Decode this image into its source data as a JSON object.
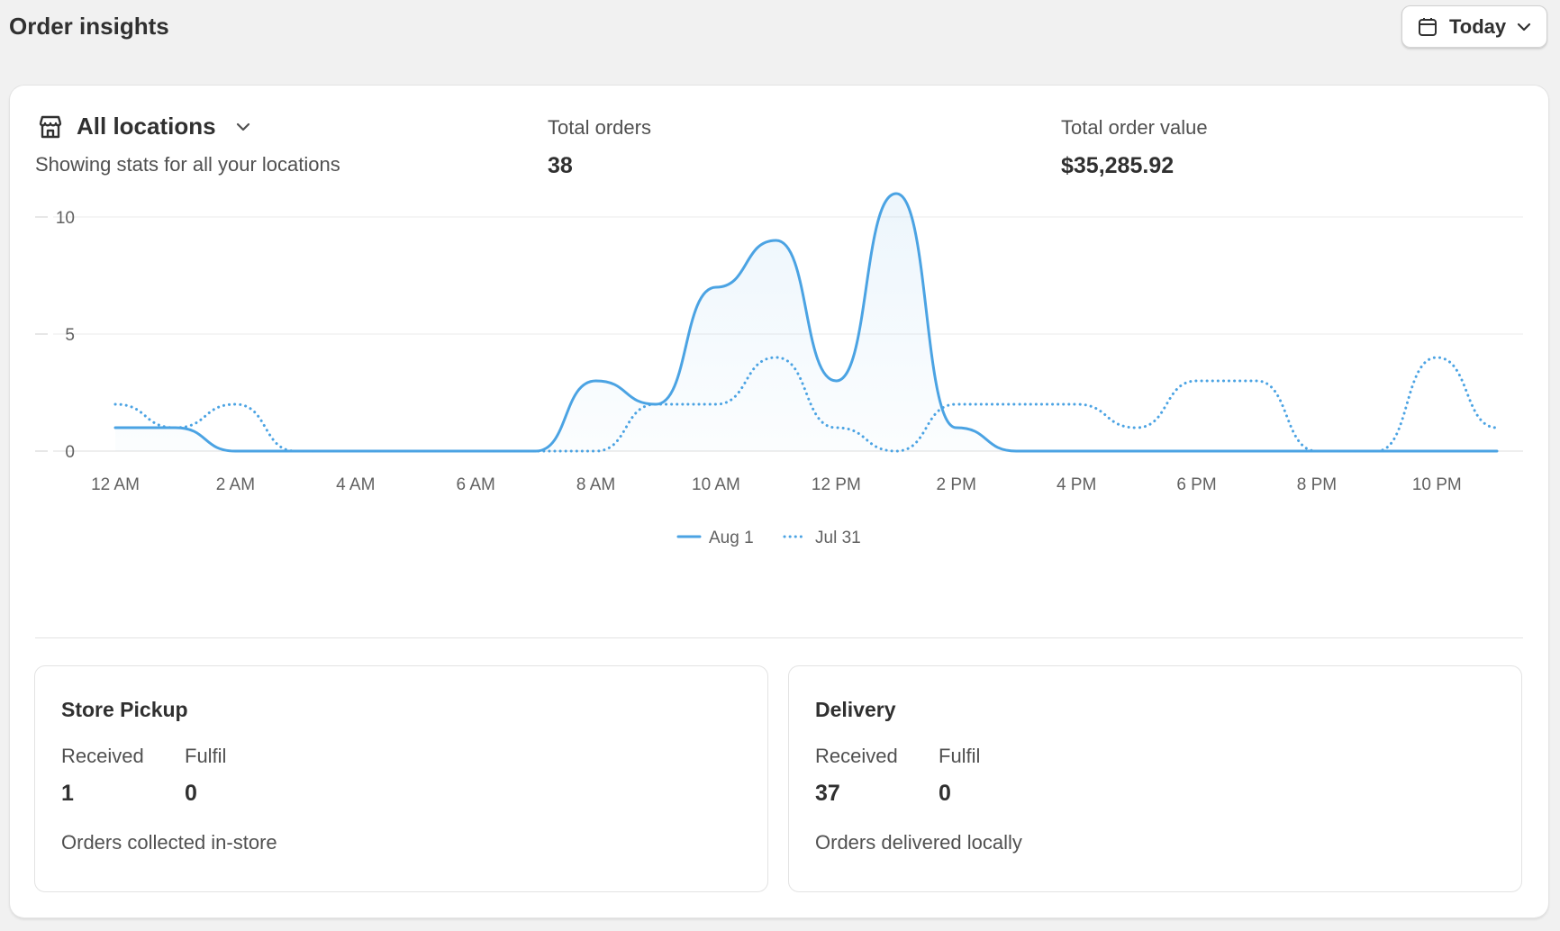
{
  "header": {
    "title": "Order insights",
    "date_range": "Today"
  },
  "summary": {
    "location_label": "All locations",
    "location_subtitle": "Showing stats for all your locations",
    "total_orders_label": "Total orders",
    "total_orders_value": "38",
    "total_value_label": "Total order value",
    "total_value_value": "$35,285.92"
  },
  "chart_data": {
    "type": "line",
    "x_labels": [
      "12 AM",
      "2 AM",
      "4 AM",
      "6 AM",
      "8 AM",
      "10 AM",
      "12 PM",
      "2 PM",
      "4 PM",
      "6 PM",
      "8 PM",
      "10 PM"
    ],
    "x_hours": [
      0,
      1,
      2,
      3,
      4,
      5,
      6,
      7,
      8,
      9,
      10,
      11,
      12,
      13,
      14,
      15,
      16,
      17,
      18,
      19,
      20,
      21,
      22,
      23
    ],
    "y_ticks": [
      0,
      5,
      10
    ],
    "ylim": [
      0,
      11
    ],
    "grid": true,
    "legend_position": "bottom",
    "series": [
      {
        "name": "Aug 1",
        "style": "solid",
        "color": "#4ba3e3",
        "values": [
          1,
          1,
          0,
          0,
          0,
          0,
          0,
          0,
          3,
          2,
          7,
          9,
          3,
          11,
          1,
          0,
          0,
          0,
          0,
          0,
          0,
          0,
          0,
          0
        ]
      },
      {
        "name": "Jul 31",
        "style": "dotted",
        "color": "#4ba3e3",
        "values": [
          2,
          1,
          2,
          0,
          0,
          0,
          0,
          0,
          0,
          2,
          2,
          4,
          1,
          0,
          2,
          2,
          2,
          1,
          3,
          3,
          0,
          0,
          4,
          1
        ]
      }
    ]
  },
  "store_pickup": {
    "title": "Store Pickup",
    "received_label": "Received",
    "received_value": "1",
    "fulfil_label": "Fulfil",
    "fulfil_value": "0",
    "description": "Orders collected in-store"
  },
  "delivery": {
    "title": "Delivery",
    "received_label": "Received",
    "received_value": "37",
    "fulfil_label": "Fulfil",
    "fulfil_value": "0",
    "description": "Orders delivered locally"
  },
  "icons": {
    "calendar": "calendar-icon",
    "chevron": "chevron-down-icon",
    "store": "store-icon"
  }
}
